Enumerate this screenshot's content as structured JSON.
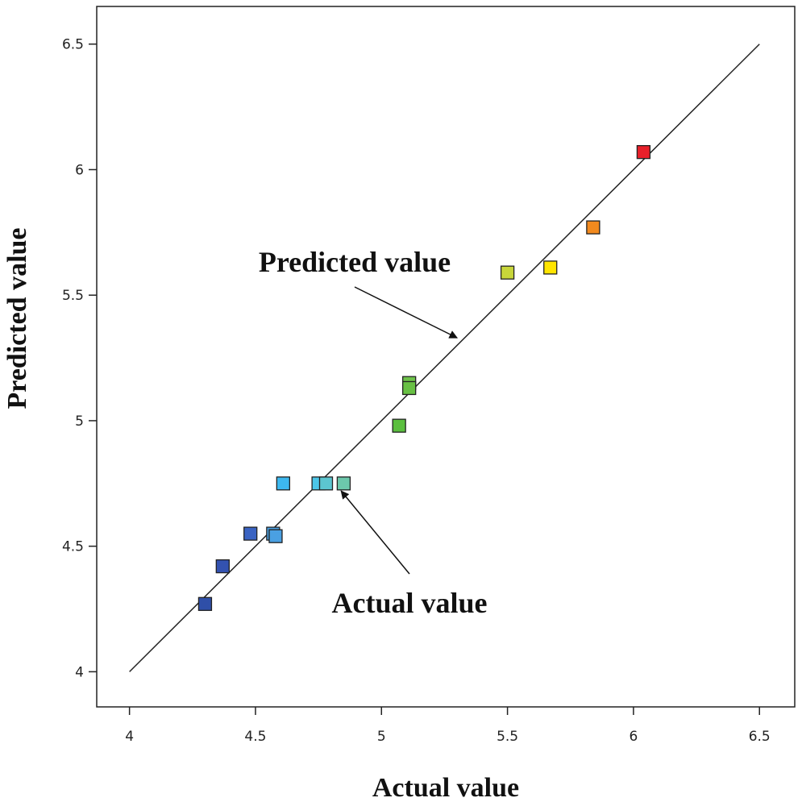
{
  "chart_data": {
    "type": "scatter",
    "title": "",
    "xlabel": "Actual value",
    "ylabel": "Predicted value",
    "xlim": [
      3.87,
      6.64
    ],
    "ylim": [
      3.86,
      6.65
    ],
    "xticks": [
      4,
      4.5,
      5,
      5.5,
      6,
      6.5
    ],
    "yticks": [
      4,
      4.5,
      5,
      5.5,
      6,
      6.5
    ],
    "xtick_labels": [
      "4",
      "4.5",
      "5",
      "5.5",
      "6",
      "6.5"
    ],
    "ytick_labels": [
      "4",
      "4.5",
      "5",
      "5.5",
      "6",
      "6.5"
    ],
    "grid": false,
    "reference_line": {
      "from": [
        4,
        4
      ],
      "to": [
        6.5,
        6.5
      ]
    },
    "points": [
      {
        "x": 4.3,
        "y": 4.27,
        "color": "#2f4fa8"
      },
      {
        "x": 4.37,
        "y": 4.42,
        "color": "#3352b0"
      },
      {
        "x": 4.48,
        "y": 4.55,
        "color": "#3a63c2"
      },
      {
        "x": 4.57,
        "y": 4.55,
        "color": "#4a9fe0"
      },
      {
        "x": 4.58,
        "y": 4.54,
        "color": "#4aa0e2"
      },
      {
        "x": 4.61,
        "y": 4.75,
        "color": "#3db8ef"
      },
      {
        "x": 4.75,
        "y": 4.75,
        "color": "#4cc6e8"
      },
      {
        "x": 4.78,
        "y": 4.75,
        "color": "#5cc6d0"
      },
      {
        "x": 4.85,
        "y": 4.75,
        "color": "#6cc8ac"
      },
      {
        "x": 5.07,
        "y": 4.98,
        "color": "#5bbf3f"
      },
      {
        "x": 5.11,
        "y": 5.15,
        "color": "#6ec24a"
      },
      {
        "x": 5.11,
        "y": 5.13,
        "color": "#68c044"
      },
      {
        "x": 5.5,
        "y": 5.59,
        "color": "#c8d63a"
      },
      {
        "x": 5.67,
        "y": 5.61,
        "color": "#ffe500"
      },
      {
        "x": 5.84,
        "y": 5.77,
        "color": "#f28a1e"
      },
      {
        "x": 6.04,
        "y": 6.07,
        "color": "#e8202a"
      }
    ],
    "annotations": [
      {
        "text": "Predicted value",
        "arrow_to": [
          5.3,
          5.33
        ]
      },
      {
        "text": "Actual value",
        "arrow_to": [
          4.84,
          4.72
        ]
      }
    ]
  }
}
